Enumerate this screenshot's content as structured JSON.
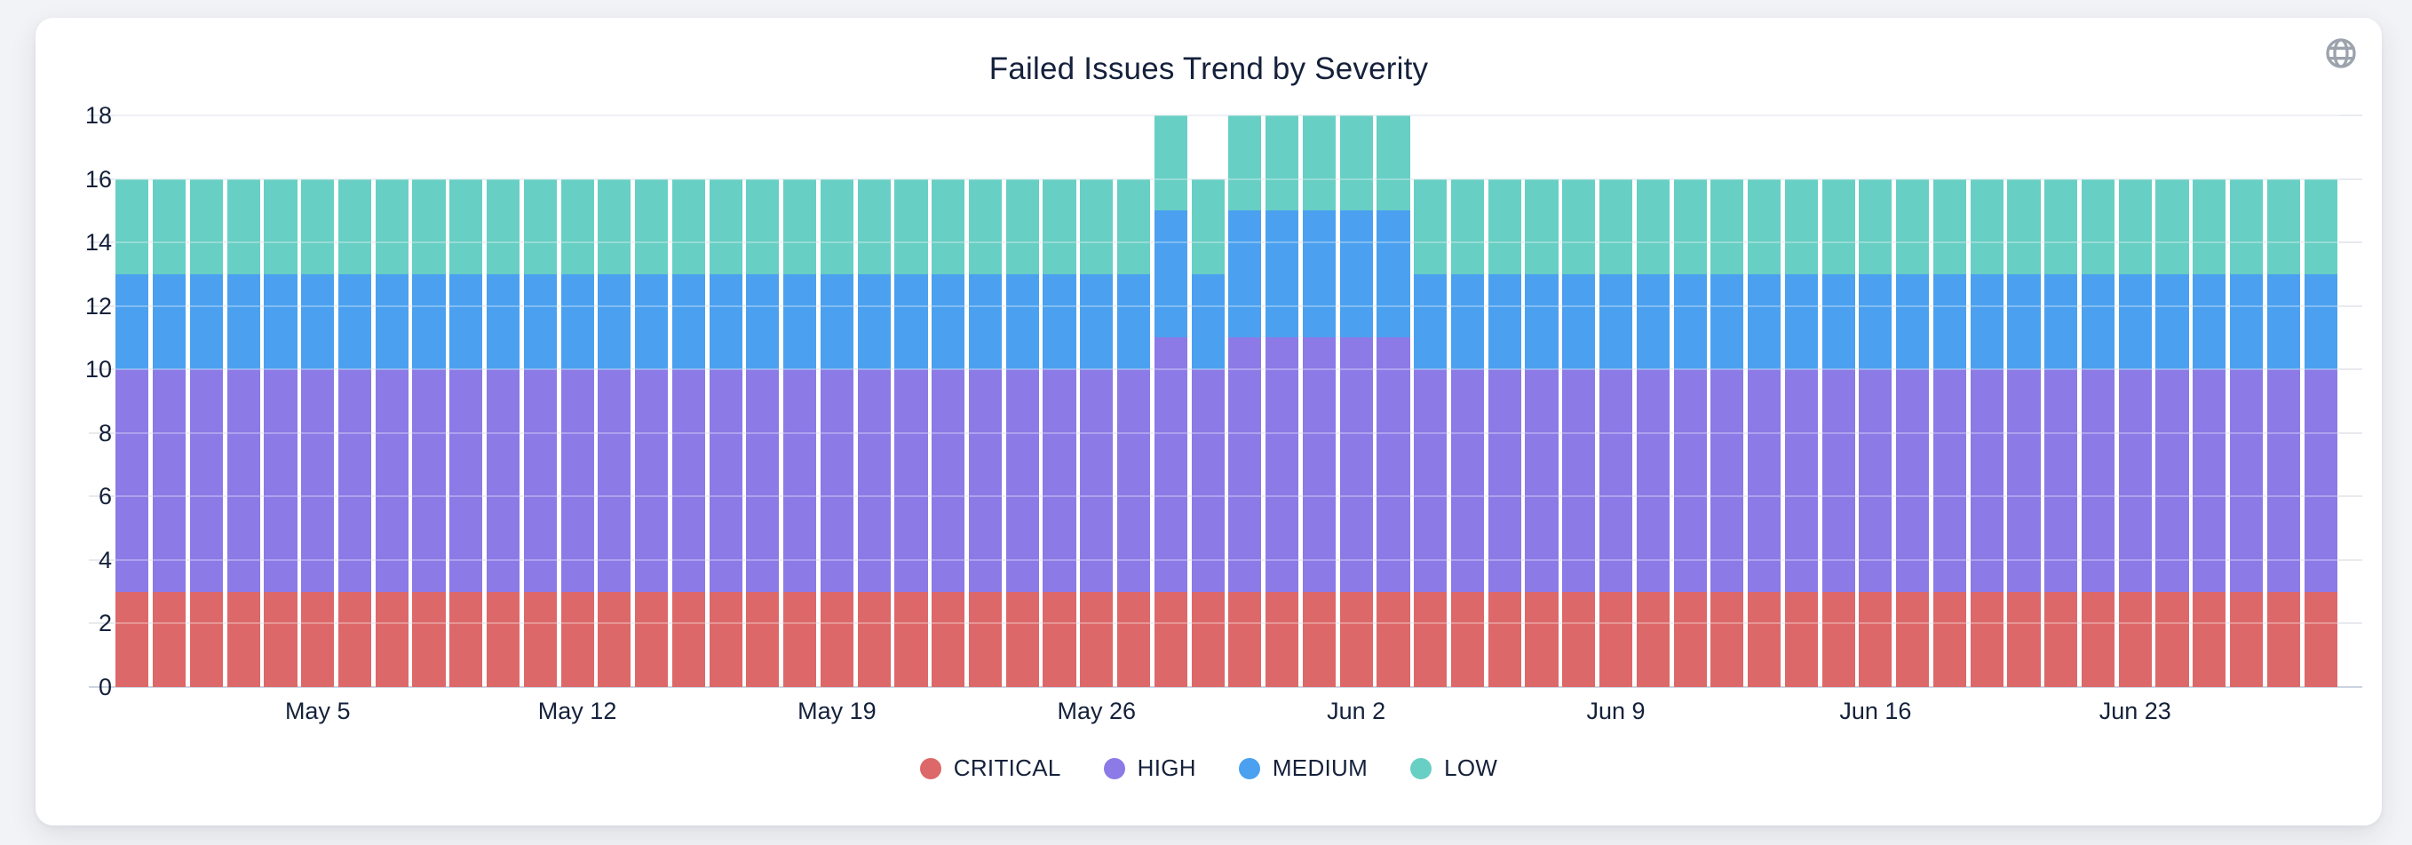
{
  "header": {
    "title": "Failed Issues Trend by Severity"
  },
  "icons": {
    "globe": {
      "name": "globe-icon",
      "color": "#9ca3ac"
    }
  },
  "colors": {
    "page_background": "#f2f3f6",
    "card_background": "#ffffff",
    "text": "#15213b",
    "gridline": "#e8eaef",
    "axis_baseline": "#ccd4e0",
    "critical": "#dd6869",
    "high": "#8c7ae7",
    "medium": "#4ba1ef",
    "low": "#68cfc4"
  },
  "chart_data": {
    "type": "bar",
    "stacked": true,
    "title": "Failed Issues Trend by Severity",
    "xlabel": "",
    "ylabel": "",
    "ylim": [
      0,
      18
    ],
    "yticks": [
      0,
      2,
      4,
      6,
      8,
      10,
      12,
      14,
      16,
      18
    ],
    "grid": "horizontal",
    "legend_position": "bottom",
    "x": [
      "Apr 30",
      "May 1",
      "May 2",
      "May 3",
      "May 4",
      "May 5",
      "May 6",
      "May 7",
      "May 8",
      "May 9",
      "May 10",
      "May 11",
      "May 12",
      "May 13",
      "May 14",
      "May 15",
      "May 16",
      "May 17",
      "May 18",
      "May 19",
      "May 20",
      "May 21",
      "May 22",
      "May 23",
      "May 24",
      "May 25",
      "May 26",
      "May 27",
      "May 28",
      "May 29",
      "May 30",
      "May 31",
      "Jun 1",
      "Jun 2",
      "Jun 3",
      "Jun 4",
      "Jun 5",
      "Jun 6",
      "Jun 7",
      "Jun 8",
      "Jun 9",
      "Jun 10",
      "Jun 11",
      "Jun 12",
      "Jun 13",
      "Jun 14",
      "Jun 15",
      "Jun 16",
      "Jun 17",
      "Jun 18",
      "Jun 19",
      "Jun 20",
      "Jun 21",
      "Jun 22",
      "Jun 23",
      "Jun 24",
      "Jun 25",
      "Jun 26",
      "Jun 27",
      "Jun 28"
    ],
    "xtick_labels": [
      "May 5",
      "May 12",
      "May 19",
      "May 26",
      "Jun 2",
      "Jun 9",
      "Jun 16",
      "Jun 23"
    ],
    "xtick_day_indices": [
      5,
      12,
      19,
      26,
      33,
      40,
      47,
      54
    ],
    "series": [
      {
        "name": "CRITICAL",
        "color": "#dd6869",
        "values": [
          3,
          3,
          3,
          3,
          3,
          3,
          3,
          3,
          3,
          3,
          3,
          3,
          3,
          3,
          3,
          3,
          3,
          3,
          3,
          3,
          3,
          3,
          3,
          3,
          3,
          3,
          3,
          3,
          3,
          3,
          3,
          3,
          3,
          3,
          3,
          3,
          3,
          3,
          3,
          3,
          3,
          3,
          3,
          3,
          3,
          3,
          3,
          3,
          3,
          3,
          3,
          3,
          3,
          3,
          3,
          3,
          3,
          3,
          3,
          3
        ]
      },
      {
        "name": "HIGH",
        "color": "#8c7ae7",
        "values": [
          7,
          7,
          7,
          7,
          7,
          7,
          7,
          7,
          7,
          7,
          7,
          7,
          7,
          7,
          7,
          7,
          7,
          7,
          7,
          7,
          7,
          7,
          7,
          7,
          7,
          7,
          7,
          7,
          8,
          7,
          8,
          8,
          8,
          8,
          8,
          7,
          7,
          7,
          7,
          7,
          7,
          7,
          7,
          7,
          7,
          7,
          7,
          7,
          7,
          7,
          7,
          7,
          7,
          7,
          7,
          7,
          7,
          7,
          7,
          7
        ]
      },
      {
        "name": "MEDIUM",
        "color": "#4ba1ef",
        "values": [
          3,
          3,
          3,
          3,
          3,
          3,
          3,
          3,
          3,
          3,
          3,
          3,
          3,
          3,
          3,
          3,
          3,
          3,
          3,
          3,
          3,
          3,
          3,
          3,
          3,
          3,
          3,
          3,
          4,
          3,
          4,
          4,
          4,
          4,
          4,
          3,
          3,
          3,
          3,
          3,
          3,
          3,
          3,
          3,
          3,
          3,
          3,
          3,
          3,
          3,
          3,
          3,
          3,
          3,
          3,
          3,
          3,
          3,
          3,
          3
        ]
      },
      {
        "name": "LOW",
        "color": "#68cfc4",
        "values": [
          3,
          3,
          3,
          3,
          3,
          3,
          3,
          3,
          3,
          3,
          3,
          3,
          3,
          3,
          3,
          3,
          3,
          3,
          3,
          3,
          3,
          3,
          3,
          3,
          3,
          3,
          3,
          3,
          3,
          3,
          3,
          3,
          3,
          3,
          3,
          3,
          3,
          3,
          3,
          3,
          3,
          3,
          3,
          3,
          3,
          3,
          3,
          3,
          3,
          3,
          3,
          3,
          3,
          3,
          3,
          3,
          3,
          3,
          3,
          3
        ]
      }
    ],
    "legend": [
      "CRITICAL",
      "HIGH",
      "MEDIUM",
      "LOW"
    ]
  }
}
